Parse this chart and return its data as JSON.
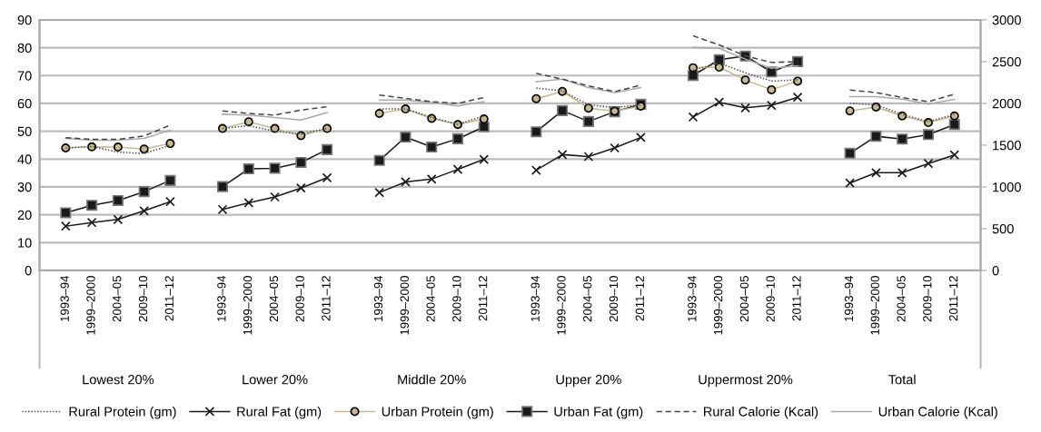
{
  "chart_data": {
    "type": "line",
    "categories": [
      "1993–94",
      "1999–2000",
      "2004–05",
      "2009–10",
      "2011–12",
      null,
      "1993–94",
      "1999–2000",
      "2004–05",
      "2009–10",
      "2011–12",
      null,
      "1993–94",
      "1999–2000",
      "2004–05",
      "2009–10",
      "2011–12",
      null,
      "1993–94",
      "1999–2000",
      "2004–05",
      "2009–10",
      "2011–12",
      null,
      "1993–94",
      "1999–2000",
      "2004–05",
      "2009–10",
      "2011–12",
      null,
      "1993–94",
      "1999–2000",
      "2004–05",
      "2009–10",
      "2011–12"
    ],
    "series": [
      {
        "name": "Rural Protein (gm)",
        "color": "#555555",
        "marker": "none",
        "line_style": "dotted",
        "values": [
          44,
          44.5,
          42.5,
          42,
          45,
          null,
          51,
          52,
          50,
          49,
          51,
          null,
          58,
          58,
          55,
          52.5,
          55.5,
          null,
          65.5,
          64.5,
          59.5,
          58.5,
          59.5,
          null,
          72,
          74.5,
          71,
          68,
          68.5,
          null,
          60,
          59.5,
          56,
          53.5,
          56
        ]
      },
      {
        "name": "Rural Fat (gm)",
        "color": "#1a1a1a",
        "marker": "cross",
        "line_style": "solid",
        "values": [
          15.9,
          17.2,
          18.3,
          21.4,
          24.7,
          null,
          21.9,
          24.3,
          26.4,
          29.6,
          33.3,
          null,
          28,
          31.8,
          32.8,
          36.3,
          39.9,
          null,
          36,
          41.6,
          40.9,
          44,
          47.8,
          null,
          55.1,
          60.4,
          58.4,
          59.3,
          62.2,
          null,
          31.4,
          35.1,
          35.1,
          38.4,
          41.5
        ]
      },
      {
        "name": "Urban Protein (gm)",
        "color": "#c8b98a",
        "marker": "circle",
        "line_style": "solid",
        "values": [
          44,
          44.4,
          44.3,
          43.6,
          45.6,
          null,
          51,
          53.4,
          51,
          48.4,
          51,
          null,
          56.4,
          58,
          54.6,
          52.4,
          54.4,
          null,
          61.7,
          64.3,
          58.3,
          57.2,
          59,
          null,
          72.8,
          73,
          68.4,
          64.9,
          68,
          null,
          57.3,
          58.7,
          55.5,
          53.1,
          55.5
        ]
      },
      {
        "name": "Urban Fat (gm)",
        "color": "#1a1a1a",
        "marker": "square",
        "line_style": "solid",
        "values": [
          20.7,
          23.4,
          25.1,
          28.3,
          32.3,
          null,
          30.1,
          36.5,
          36.7,
          38.8,
          43.4,
          null,
          39.5,
          47.9,
          44.3,
          47.3,
          51.6,
          null,
          49.8,
          57.4,
          53.5,
          57,
          59.7,
          null,
          70,
          75.7,
          77,
          71.3,
          75,
          null,
          42.1,
          48.2,
          47.2,
          48.8,
          52.4
        ]
      },
      {
        "name": "Rural Calorie (Kcal)",
        "color": "#444444",
        "marker": "none",
        "line_style": "dashed",
        "axis": "y2",
        "values": [
          1590,
          1570,
          1570,
          1610,
          1740,
          null,
          1910,
          1880,
          1860,
          1920,
          1960,
          null,
          2100,
          2060,
          2020,
          2000,
          2070,
          null,
          2360,
          2290,
          2210,
          2140,
          2220,
          null,
          2810,
          2700,
          2570,
          2490,
          2500,
          null,
          2160,
          2130,
          2070,
          2020,
          2110
        ]
      },
      {
        "name": "Urban Calorie (Kcal)",
        "color": "#aaaaaa",
        "marker": "none",
        "line_style": "solid",
        "axis": "y2",
        "values": [
          1580,
          1560,
          1560,
          1580,
          1680,
          null,
          1870,
          1860,
          1830,
          1800,
          1890,
          null,
          2040,
          2040,
          2010,
          1970,
          2020,
          null,
          2260,
          2290,
          2190,
          2130,
          2190,
          null,
          2670,
          2660,
          2530,
          2420,
          2450,
          null,
          2080,
          2080,
          2050,
          1990,
          2050
        ]
      }
    ],
    "ylim": [
      0,
      90
    ],
    "yticks": [
      0,
      10,
      20,
      30,
      40,
      50,
      60,
      70,
      80,
      90
    ],
    "y2lim": [
      0,
      3000
    ],
    "y2ticks": [
      0,
      500,
      1000,
      1500,
      2000,
      2500,
      3000
    ],
    "grid": "y",
    "legend": "bottom",
    "annotations": [
      "Lowest 20%",
      "Lower 20%",
      "Middle 20%",
      "Upper 20%",
      "Uppermost 20%",
      "Total"
    ]
  }
}
